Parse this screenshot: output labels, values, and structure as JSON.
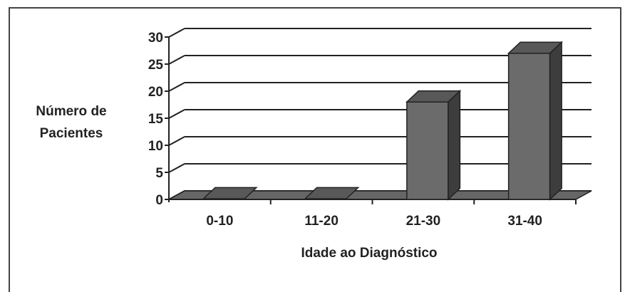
{
  "chart_data": {
    "type": "bar",
    "categories": [
      "0-10",
      "11-20",
      "21-30",
      "31-40"
    ],
    "values": [
      0,
      0,
      18,
      27
    ],
    "xlabel": "Idade ao Diagnóstico",
    "ylabel_lines": [
      "Número de",
      "Pacientes"
    ],
    "ylim": [
      0,
      30
    ],
    "yticks": [
      "0",
      "5",
      "10",
      "15",
      "20",
      "25",
      "30"
    ],
    "grid": true,
    "style": "3d-bar"
  }
}
